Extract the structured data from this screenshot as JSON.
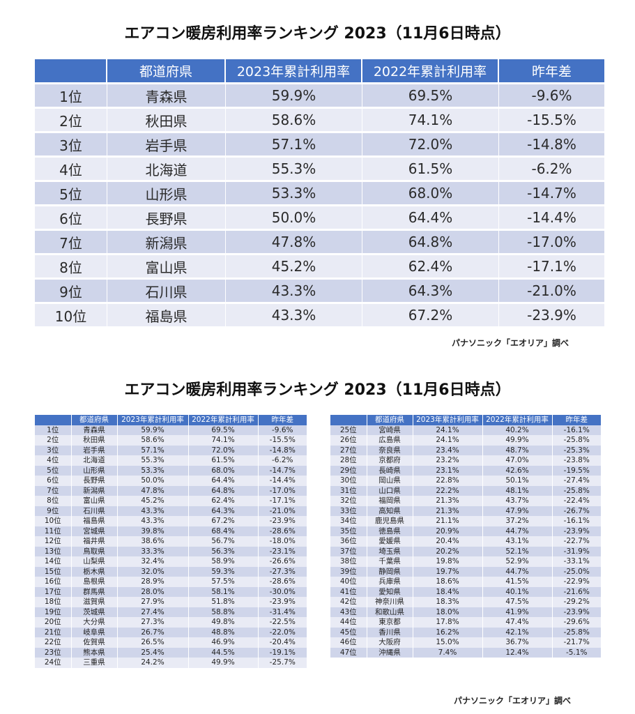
{
  "title1": "エアコン暖房利用率ランキング 2023（11月6日時点）",
  "title2": "エアコン暖房利用率ランキング 2023（11月6日時点）",
  "credit1": "パナソニック「エオリア」調べ",
  "credit2": "パナソニック「エオリア」調べ",
  "headers": [
    "",
    "都道府県",
    "2023年累計利用率",
    "2022年累計利用率",
    "昨年差"
  ],
  "rows": [
    [
      "1位",
      "青森県",
      "59.9%",
      "69.5%",
      "-9.6%"
    ],
    [
      "2位",
      "秋田県",
      "58.6%",
      "74.1%",
      "-15.5%"
    ],
    [
      "3位",
      "岩手県",
      "57.1%",
      "72.0%",
      "-14.8%"
    ],
    [
      "4位",
      "北海道",
      "55.3%",
      "61.5%",
      "-6.2%"
    ],
    [
      "5位",
      "山形県",
      "53.3%",
      "68.0%",
      "-14.7%"
    ],
    [
      "6位",
      "長野県",
      "50.0%",
      "64.4%",
      "-14.4%"
    ],
    [
      "7位",
      "新潟県",
      "47.8%",
      "64.8%",
      "-17.0%"
    ],
    [
      "8位",
      "富山県",
      "45.2%",
      "62.4%",
      "-17.1%"
    ],
    [
      "9位",
      "石川県",
      "43.3%",
      "64.3%",
      "-21.0%"
    ],
    [
      "10位",
      "福島県",
      "43.3%",
      "67.2%",
      "-23.9%"
    ],
    [
      "11位",
      "宮城県",
      "39.8%",
      "68.4%",
      "-28.6%"
    ],
    [
      "12位",
      "福井県",
      "38.6%",
      "56.7%",
      "-18.0%"
    ],
    [
      "13位",
      "鳥取県",
      "33.3%",
      "56.3%",
      "-23.1%"
    ],
    [
      "14位",
      "山梨県",
      "32.4%",
      "58.9%",
      "-26.6%"
    ],
    [
      "15位",
      "栃木県",
      "32.0%",
      "59.3%",
      "-27.3%"
    ],
    [
      "16位",
      "島根県",
      "28.9%",
      "57.5%",
      "-28.6%"
    ],
    [
      "17位",
      "群馬県",
      "28.0%",
      "58.1%",
      "-30.0%"
    ],
    [
      "18位",
      "滋賀県",
      "27.9%",
      "51.8%",
      "-23.9%"
    ],
    [
      "19位",
      "茨城県",
      "27.4%",
      "58.8%",
      "-31.4%"
    ],
    [
      "20位",
      "大分県",
      "27.3%",
      "49.8%",
      "-22.5%"
    ],
    [
      "21位",
      "岐阜県",
      "26.7%",
      "48.8%",
      "-22.0%"
    ],
    [
      "22位",
      "佐賀県",
      "26.5%",
      "46.9%",
      "-20.4%"
    ],
    [
      "23位",
      "熊本県",
      "25.4%",
      "44.5%",
      "-19.1%"
    ],
    [
      "24位",
      "三重県",
      "24.2%",
      "49.9%",
      "-25.7%"
    ],
    [
      "25位",
      "宮崎県",
      "24.1%",
      "40.2%",
      "-16.1%"
    ],
    [
      "26位",
      "広島県",
      "24.1%",
      "49.9%",
      "-25.8%"
    ],
    [
      "27位",
      "奈良県",
      "23.4%",
      "48.7%",
      "-25.3%"
    ],
    [
      "28位",
      "京都府",
      "23.2%",
      "47.0%",
      "-23.8%"
    ],
    [
      "29位",
      "長崎県",
      "23.1%",
      "42.6%",
      "-19.5%"
    ],
    [
      "30位",
      "岡山県",
      "22.8%",
      "50.1%",
      "-27.4%"
    ],
    [
      "31位",
      "山口県",
      "22.2%",
      "48.1%",
      "-25.8%"
    ],
    [
      "32位",
      "福岡県",
      "21.3%",
      "43.7%",
      "-22.4%"
    ],
    [
      "33位",
      "高知県",
      "21.3%",
      "47.9%",
      "-26.7%"
    ],
    [
      "34位",
      "鹿児島県",
      "21.1%",
      "37.2%",
      "-16.1%"
    ],
    [
      "35位",
      "徳島県",
      "20.9%",
      "44.7%",
      "-23.9%"
    ],
    [
      "36位",
      "愛媛県",
      "20.4%",
      "43.1%",
      "-22.7%"
    ],
    [
      "37位",
      "埼玉県",
      "20.2%",
      "52.1%",
      "-31.9%"
    ],
    [
      "38位",
      "千葉県",
      "19.8%",
      "52.9%",
      "-33.1%"
    ],
    [
      "39位",
      "静岡県",
      "19.7%",
      "44.7%",
      "-25.0%"
    ],
    [
      "40位",
      "兵庫県",
      "18.6%",
      "41.5%",
      "-22.9%"
    ],
    [
      "41位",
      "愛知県",
      "18.4%",
      "40.1%",
      "-21.6%"
    ],
    [
      "42位",
      "神奈川県",
      "18.3%",
      "47.5%",
      "-29.2%"
    ],
    [
      "43位",
      "和歌山県",
      "18.0%",
      "41.9%",
      "-23.9%"
    ],
    [
      "44位",
      "東京都",
      "17.8%",
      "47.4%",
      "-29.6%"
    ],
    [
      "45位",
      "香川県",
      "16.2%",
      "42.1%",
      "-25.8%"
    ],
    [
      "46位",
      "大阪府",
      "15.0%",
      "36.7%",
      "-21.7%"
    ],
    [
      "47位",
      "沖縄県",
      "7.4%",
      "12.4%",
      "-5.1%"
    ]
  ]
}
